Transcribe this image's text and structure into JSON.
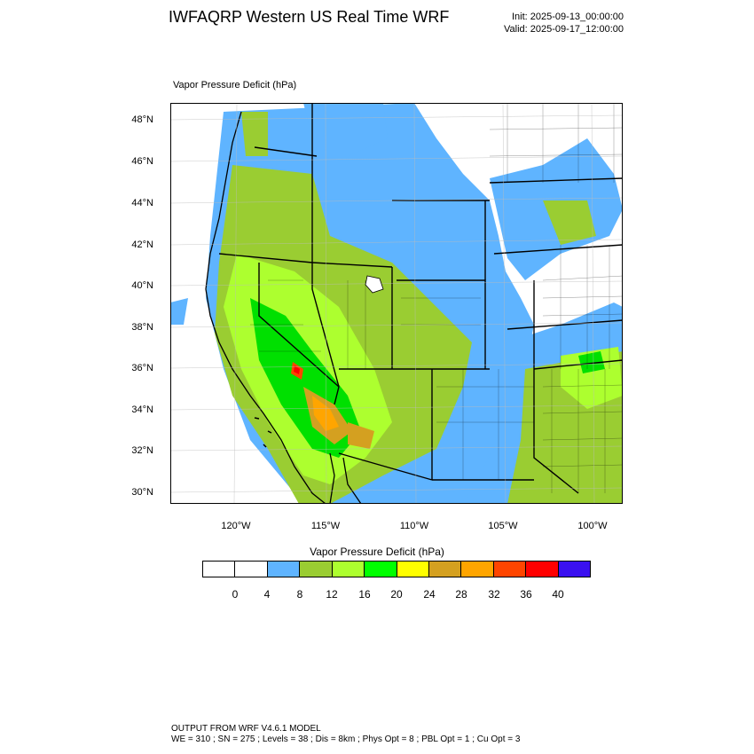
{
  "header": {
    "title": "IWFAQRP Western US Real Time WRF",
    "init": "Init: 2025-09-13_00:00:00",
    "valid": "Valid: 2025-09-17_12:00:00"
  },
  "map": {
    "field_title": "Vapor Pressure Deficit   (hPa)",
    "lat_labels": [
      "48°N",
      "46°N",
      "44°N",
      "42°N",
      "40°N",
      "38°N",
      "36°N",
      "34°N",
      "32°N",
      "30°N"
    ],
    "lon_labels": [
      "120°W",
      "115°W",
      "110°W",
      "105°W",
      "100°W"
    ],
    "colors": {
      "land": "#ffffff",
      "b4_8": "#5fb4ff",
      "b8_12": "#9acd32",
      "b12_16": "#adff2f",
      "b16_20": "#00e000",
      "b24_28": "#d4a020",
      "b28_32": "#ffa500",
      "b32_36": "#ff4500",
      "b36_40": "#ff0000"
    }
  },
  "colorbar": {
    "title": "Vapor Pressure Deficit  (hPa)",
    "labels": [
      "0",
      "4",
      "8",
      "12",
      "16",
      "20",
      "24",
      "28",
      "32",
      "36",
      "40"
    ],
    "colors": [
      "#ffffff",
      "#ffffff",
      "#5fb4ff",
      "#9acd32",
      "#adff2f",
      "#00ff00",
      "#ffff00",
      "#d4a020",
      "#ffa500",
      "#ff4500",
      "#ff0000",
      "#3a10f0"
    ]
  },
  "footer": {
    "line1": "OUTPUT FROM WRF V4.6.1 MODEL",
    "line2": "WE = 310 ; SN = 275 ; Levels = 38 ; Dis = 8km ; Phys Opt = 8 ; PBL Opt = 1 ; Cu Opt = 3"
  }
}
